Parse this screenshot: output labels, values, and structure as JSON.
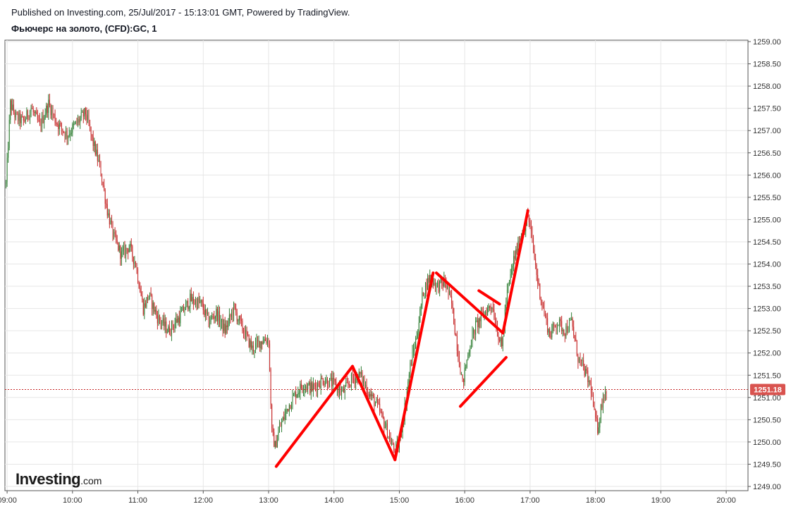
{
  "header": {
    "published": "Published on Investing.com, 25/Jul/2017 - 15:13:01 GMT, Powered by TradingView.",
    "symbol": "Фьючерс на золото, (CFD):GC, 1"
  },
  "logo": {
    "main": "Investing",
    "suffix": ".com"
  },
  "colors": {
    "up": "#2e7d32",
    "down": "#c62828",
    "annotation": "#ff0000",
    "price_line": "#c62828",
    "price_badge": "#d9534f",
    "grid": "#e6e6e6",
    "axis": "#555555"
  },
  "chart_data": {
    "type": "candlestick",
    "x_tick_labels": [
      "09:00",
      "10:00",
      "11:00",
      "12:00",
      "13:00",
      "14:00",
      "15:00",
      "16:00",
      "17:00",
      "18:00",
      "19:00",
      "20:00"
    ],
    "y_tick_labels": [
      "1249.00",
      "1249.50",
      "1250.00",
      "1250.50",
      "1251.00",
      "1251.50",
      "1252.00",
      "1252.50",
      "1253.00",
      "1253.50",
      "1254.00",
      "1254.50",
      "1255.00",
      "1255.50",
      "1256.00",
      "1256.50",
      "1257.00",
      "1257.50",
      "1258.00",
      "1258.50",
      "1259.00"
    ],
    "ylim": [
      1249.0,
      1259.0
    ],
    "xlim": [
      "08:58",
      "20:20"
    ],
    "current_price": 1251.18,
    "current_price_label": "1251.18",
    "price_path": [
      {
        "t": "08:59",
        "p": 1255.8
      },
      {
        "t": "09:03",
        "p": 1257.6
      },
      {
        "t": "09:08",
        "p": 1257.3
      },
      {
        "t": "09:15",
        "p": 1257.2
      },
      {
        "t": "09:22",
        "p": 1257.5
      },
      {
        "t": "09:30",
        "p": 1257.1
      },
      {
        "t": "09:38",
        "p": 1257.6
      },
      {
        "t": "09:45",
        "p": 1257.2
      },
      {
        "t": "09:55",
        "p": 1256.9
      },
      {
        "t": "10:05",
        "p": 1257.2
      },
      {
        "t": "10:12",
        "p": 1257.4
      },
      {
        "t": "10:18",
        "p": 1256.8
      },
      {
        "t": "10:25",
        "p": 1256.2
      },
      {
        "t": "10:32",
        "p": 1255.2
      },
      {
        "t": "10:38",
        "p": 1254.6
      },
      {
        "t": "10:45",
        "p": 1254.2
      },
      {
        "t": "10:52",
        "p": 1254.4
      },
      {
        "t": "10:58",
        "p": 1254.0
      },
      {
        "t": "11:05",
        "p": 1253.0
      },
      {
        "t": "11:10",
        "p": 1253.3
      },
      {
        "t": "11:18",
        "p": 1252.8
      },
      {
        "t": "11:28",
        "p": 1252.5
      },
      {
        "t": "11:38",
        "p": 1252.8
      },
      {
        "t": "11:48",
        "p": 1253.2
      },
      {
        "t": "11:58",
        "p": 1253.1
      },
      {
        "t": "12:05",
        "p": 1252.7
      },
      {
        "t": "12:12",
        "p": 1252.9
      },
      {
        "t": "12:20",
        "p": 1252.5
      },
      {
        "t": "12:28",
        "p": 1253.0
      },
      {
        "t": "12:35",
        "p": 1252.6
      },
      {
        "t": "12:45",
        "p": 1252.1
      },
      {
        "t": "12:55",
        "p": 1252.3
      },
      {
        "t": "13:00",
        "p": 1252.3
      },
      {
        "t": "13:03",
        "p": 1250.2
      },
      {
        "t": "13:06",
        "p": 1249.9
      },
      {
        "t": "13:10",
        "p": 1250.3
      },
      {
        "t": "13:18",
        "p": 1250.8
      },
      {
        "t": "13:25",
        "p": 1251.1
      },
      {
        "t": "13:32",
        "p": 1251.3
      },
      {
        "t": "13:40",
        "p": 1251.2
      },
      {
        "t": "13:50",
        "p": 1251.4
      },
      {
        "t": "14:00",
        "p": 1251.3
      },
      {
        "t": "14:08",
        "p": 1251.1
      },
      {
        "t": "14:16",
        "p": 1251.4
      },
      {
        "t": "14:24",
        "p": 1251.5
      },
      {
        "t": "14:32",
        "p": 1251.1
      },
      {
        "t": "14:40",
        "p": 1250.8
      },
      {
        "t": "14:48",
        "p": 1250.3
      },
      {
        "t": "14:55",
        "p": 1249.8
      },
      {
        "t": "14:59",
        "p": 1249.9
      },
      {
        "t": "15:04",
        "p": 1250.6
      },
      {
        "t": "15:10",
        "p": 1251.7
      },
      {
        "t": "15:16",
        "p": 1252.4
      },
      {
        "t": "15:22",
        "p": 1253.4
      },
      {
        "t": "15:28",
        "p": 1253.7
      },
      {
        "t": "15:35",
        "p": 1253.5
      },
      {
        "t": "15:42",
        "p": 1253.6
      },
      {
        "t": "15:48",
        "p": 1253.1
      },
      {
        "t": "15:54",
        "p": 1252.0
      },
      {
        "t": "15:58",
        "p": 1251.3
      },
      {
        "t": "16:04",
        "p": 1252.1
      },
      {
        "t": "16:10",
        "p": 1252.6
      },
      {
        "t": "16:18",
        "p": 1252.9
      },
      {
        "t": "16:25",
        "p": 1253.1
      },
      {
        "t": "16:30",
        "p": 1252.5
      },
      {
        "t": "16:34",
        "p": 1252.1
      },
      {
        "t": "16:38",
        "p": 1253.2
      },
      {
        "t": "16:45",
        "p": 1254.1
      },
      {
        "t": "16:52",
        "p": 1254.6
      },
      {
        "t": "16:58",
        "p": 1255.1
      },
      {
        "t": "17:02",
        "p": 1254.5
      },
      {
        "t": "17:07",
        "p": 1253.6
      },
      {
        "t": "17:12",
        "p": 1253.0
      },
      {
        "t": "17:18",
        "p": 1252.4
      },
      {
        "t": "17:25",
        "p": 1252.7
      },
      {
        "t": "17:32",
        "p": 1252.5
      },
      {
        "t": "17:38",
        "p": 1252.7
      },
      {
        "t": "17:44",
        "p": 1251.9
      },
      {
        "t": "17:50",
        "p": 1251.6
      },
      {
        "t": "17:56",
        "p": 1251.2
      },
      {
        "t": "17:59",
        "p": 1250.6
      },
      {
        "t": "18:02",
        "p": 1250.3
      },
      {
        "t": "18:06",
        "p": 1250.9
      },
      {
        "t": "18:10",
        "p": 1251.2
      }
    ],
    "annotations": [
      {
        "type": "line",
        "from": {
          "t": "13:07",
          "p": 1249.45
        },
        "to": {
          "t": "14:17",
          "p": 1251.7
        }
      },
      {
        "type": "line",
        "from": {
          "t": "14:17",
          "p": 1251.7
        },
        "to": {
          "t": "14:56",
          "p": 1249.6
        }
      },
      {
        "type": "line",
        "from": {
          "t": "14:56",
          "p": 1249.6
        },
        "to": {
          "t": "15:31",
          "p": 1253.8
        }
      },
      {
        "type": "line",
        "from": {
          "t": "15:34",
          "p": 1253.8
        },
        "to": {
          "t": "16:35",
          "p": 1252.45
        }
      },
      {
        "type": "line",
        "from": {
          "t": "16:35",
          "p": 1252.45
        },
        "to": {
          "t": "16:58",
          "p": 1255.2
        }
      },
      {
        "type": "line",
        "from": {
          "t": "16:13",
          "p": 1253.4
        },
        "to": {
          "t": "16:32",
          "p": 1253.1
        }
      },
      {
        "type": "line",
        "from": {
          "t": "15:56",
          "p": 1250.8
        },
        "to": {
          "t": "16:38",
          "p": 1251.9
        }
      }
    ]
  }
}
